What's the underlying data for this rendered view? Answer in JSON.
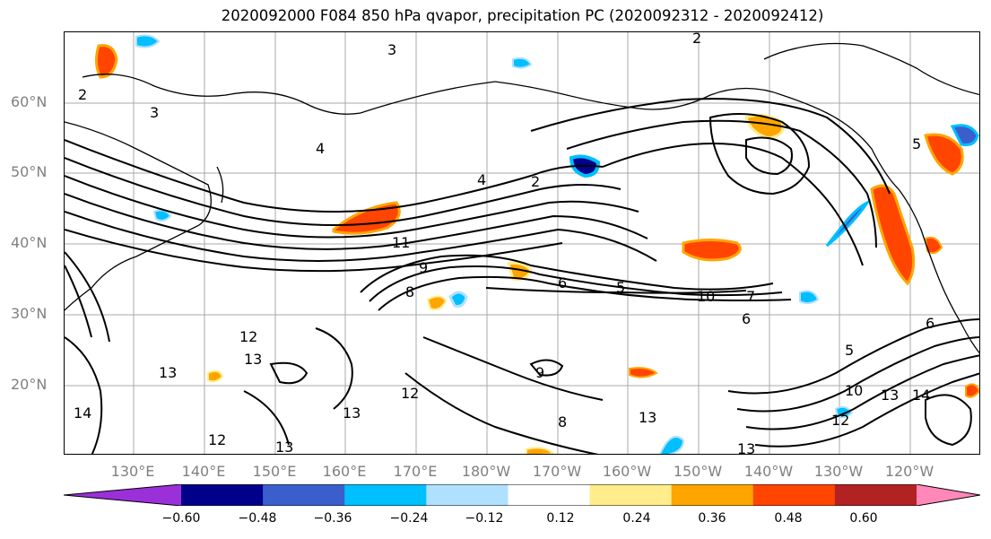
{
  "title": "2020092000 F084 850 hPa qvapor, precipitation PC (2020092312 - 2020092412)",
  "lat_labels": [
    "60°N",
    "50°N",
    "40°N",
    "30°N",
    "20°N"
  ],
  "lon_labels": [
    "130°E",
    "140°E",
    "150°E",
    "160°E",
    "170°E",
    "180°W",
    "170°W",
    "160°W",
    "150°W",
    "140°W",
    "130°W",
    "120°W"
  ],
  "colorbar": {
    "colors": [
      "#9b30d9",
      "#00008b",
      "#3a5fcd",
      "#00bfff",
      "#b0e0ff",
      "#ffffff",
      "#ffec8b",
      "#ffa500",
      "#ff4500",
      "#b22222",
      "#ff88b8"
    ],
    "tick_labels": [
      "−0.60",
      "−0.48",
      "−0.36",
      "−0.24",
      "−0.12",
      "0.12",
      "0.24",
      "0.36",
      "0.48",
      "0.60"
    ]
  },
  "contour_labels": [
    "2",
    "3",
    "4",
    "2",
    "11",
    "9",
    "8",
    "6",
    "5",
    "10",
    "7",
    "6",
    "12",
    "13",
    "13",
    "12",
    "13",
    "12",
    "13",
    "14",
    "8",
    "9",
    "13",
    "13",
    "10",
    "12",
    "13",
    "14",
    "5",
    "6",
    "5",
    "3",
    "2",
    "4"
  ]
}
